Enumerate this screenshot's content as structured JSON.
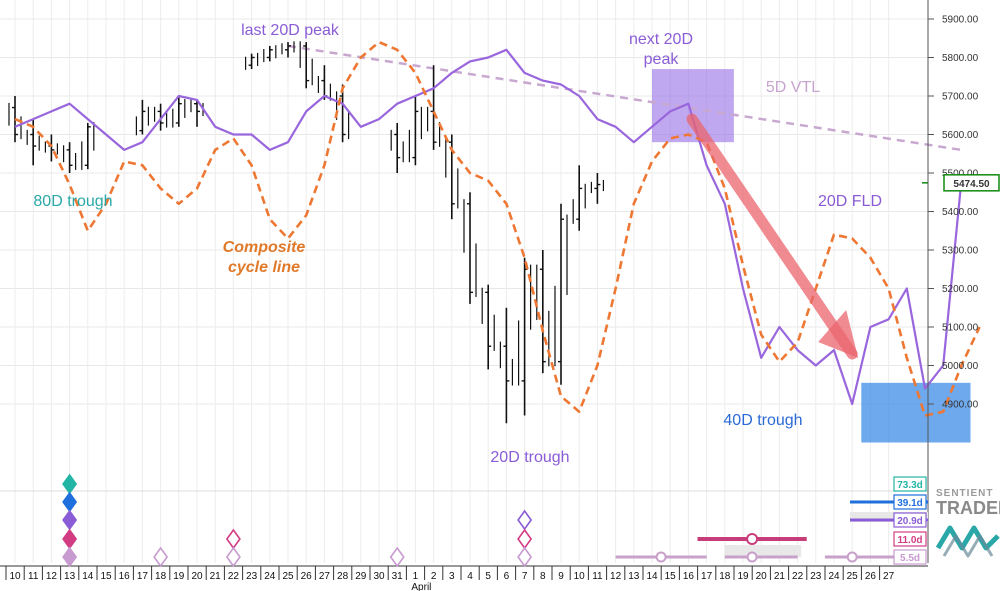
{
  "chart_data": {
    "type": "line",
    "title": "",
    "xlabel": "",
    "ylabel": "",
    "ylim": [
      4740,
      5970
    ],
    "y_ticks": [
      4900,
      5000,
      5100,
      5200,
      5300,
      5400,
      5500,
      5600,
      5700,
      5800,
      5900
    ],
    "y_tick_labels": [
      "4900.00",
      "5000.00",
      "5100.00",
      "5200.00",
      "5300.00",
      "5400.00",
      "5500.00",
      "5600.00",
      "5700.00",
      "5800.00",
      "5900.00"
    ],
    "last_price_label": "5474.50",
    "last_price": 5474.5,
    "x_tick_labels": [
      "10",
      "11",
      "12",
      "13",
      "14",
      "15",
      "16",
      "17",
      "18",
      "19",
      "20",
      "21",
      "22",
      "23",
      "24",
      "25",
      "26",
      "27",
      "28",
      "29",
      "30",
      "31",
      "1",
      "2",
      "3",
      "4",
      "5",
      "6",
      "7",
      "8",
      "9",
      "10",
      "11",
      "12",
      "13",
      "14",
      "15",
      "16",
      "17",
      "18",
      "19",
      "20",
      "21",
      "22",
      "23",
      "24",
      "25",
      "26",
      "27"
    ],
    "month_label": "April",
    "grid": true,
    "series": [
      {
        "kind": "ohlc",
        "color": "#111111",
        "days": [
          {
            "x": 0,
            "o": 5670,
            "h": 5700,
            "l": 5580,
            "c": 5600
          },
          {
            "x": 1,
            "o": 5600,
            "h": 5640,
            "l": 5520,
            "c": 5570
          },
          {
            "x": 2,
            "o": 5570,
            "h": 5600,
            "l": 5530,
            "c": 5560
          },
          {
            "x": 3,
            "o": 5560,
            "h": 5580,
            "l": 5500,
            "c": 5520
          },
          {
            "x": 4,
            "o": 5520,
            "h": 5630,
            "l": 5510,
            "c": 5620
          },
          {
            "x": 7,
            "o": 5610,
            "h": 5690,
            "l": 5600,
            "c": 5660
          },
          {
            "x": 8,
            "o": 5660,
            "h": 5680,
            "l": 5610,
            "c": 5630
          },
          {
            "x": 9,
            "o": 5630,
            "h": 5700,
            "l": 5620,
            "c": 5680
          },
          {
            "x": 10,
            "o": 5680,
            "h": 5690,
            "l": 5620,
            "c": 5660
          },
          {
            "x": 13,
            "o": 5780,
            "h": 5810,
            "l": 5770,
            "c": 5800
          },
          {
            "x": 14,
            "o": 5800,
            "h": 5830,
            "l": 5790,
            "c": 5820
          },
          {
            "x": 15,
            "o": 5820,
            "h": 5840,
            "l": 5800,
            "c": 5830
          },
          {
            "x": 16,
            "o": 5830,
            "h": 5840,
            "l": 5720,
            "c": 5740
          },
          {
            "x": 17,
            "o": 5740,
            "h": 5780,
            "l": 5690,
            "c": 5700
          },
          {
            "x": 18,
            "o": 5700,
            "h": 5730,
            "l": 5580,
            "c": 5600
          },
          {
            "x": 21,
            "o": 5600,
            "h": 5630,
            "l": 5500,
            "c": 5540
          },
          {
            "x": 22,
            "o": 5540,
            "h": 5700,
            "l": 5520,
            "c": 5660
          },
          {
            "x": 23,
            "o": 5660,
            "h": 5780,
            "l": 5560,
            "c": 5580
          },
          {
            "x": 24,
            "o": 5580,
            "h": 5600,
            "l": 5380,
            "c": 5420
          },
          {
            "x": 25,
            "o": 5420,
            "h": 5450,
            "l": 5160,
            "c": 5190
          },
          {
            "x": 26,
            "o": 5190,
            "h": 5210,
            "l": 4990,
            "c": 5050
          },
          {
            "x": 27,
            "o": 5050,
            "h": 5150,
            "l": 4850,
            "c": 4960
          },
          {
            "x": 28,
            "o": 4960,
            "h": 5280,
            "l": 4870,
            "c": 5250
          },
          {
            "x": 29,
            "o": 5250,
            "h": 5300,
            "l": 4980,
            "c": 5010
          },
          {
            "x": 30,
            "o": 5010,
            "h": 5420,
            "l": 4950,
            "c": 5380
          },
          {
            "x": 31,
            "o": 5380,
            "h": 5520,
            "l": 5350,
            "c": 5460
          },
          {
            "x": 32,
            "o": 5460,
            "h": 5500,
            "l": 5420,
            "c": 5470
          }
        ]
      },
      {
        "name": "20D FLD",
        "color": "#9966dd",
        "points": [
          [
            0,
            5620
          ],
          [
            1,
            5640
          ],
          [
            2,
            5660
          ],
          [
            3,
            5680
          ],
          [
            4,
            5640
          ],
          [
            5,
            5600
          ],
          [
            6,
            5560
          ],
          [
            7,
            5580
          ],
          [
            8,
            5640
          ],
          [
            9,
            5700
          ],
          [
            10,
            5690
          ],
          [
            11,
            5620
          ],
          [
            12,
            5600
          ],
          [
            13,
            5600
          ],
          [
            14,
            5560
          ],
          [
            15,
            5580
          ],
          [
            16,
            5660
          ],
          [
            17,
            5700
          ],
          [
            18,
            5680
          ],
          [
            19,
            5620
          ],
          [
            20,
            5640
          ],
          [
            21,
            5680
          ],
          [
            22,
            5700
          ],
          [
            23,
            5720
          ],
          [
            24,
            5760
          ],
          [
            25,
            5790
          ],
          [
            26,
            5800
          ],
          [
            27,
            5820
          ],
          [
            28,
            5760
          ],
          [
            29,
            5740
          ],
          [
            30,
            5730
          ],
          [
            31,
            5700
          ],
          [
            32,
            5640
          ],
          [
            33,
            5620
          ],
          [
            34,
            5580
          ],
          [
            35,
            5620
          ],
          [
            36,
            5660
          ],
          [
            37,
            5680
          ],
          [
            38,
            5520
          ],
          [
            39,
            5420
          ],
          [
            40,
            5200
          ],
          [
            41,
            5020
          ],
          [
            42,
            5100
          ],
          [
            43,
            5040
          ],
          [
            44,
            5000
          ],
          [
            45,
            5040
          ],
          [
            46,
            4900
          ],
          [
            47,
            5100
          ],
          [
            48,
            5120
          ],
          [
            49,
            5200
          ],
          [
            50,
            4940
          ],
          [
            51,
            5000
          ],
          [
            52,
            5480
          ]
        ]
      },
      {
        "name": "Composite cycle line",
        "color": "#ee7733",
        "points": [
          [
            0,
            5640
          ],
          [
            1,
            5620
          ],
          [
            2,
            5570
          ],
          [
            3,
            5470
          ],
          [
            4,
            5350
          ],
          [
            5,
            5420
          ],
          [
            6,
            5530
          ],
          [
            7,
            5520
          ],
          [
            8,
            5460
          ],
          [
            9,
            5420
          ],
          [
            10,
            5460
          ],
          [
            11,
            5560
          ],
          [
            12,
            5590
          ],
          [
            13,
            5520
          ],
          [
            14,
            5380
          ],
          [
            15,
            5330
          ],
          [
            16,
            5390
          ],
          [
            17,
            5520
          ],
          [
            18,
            5720
          ],
          [
            19,
            5800
          ],
          [
            20,
            5840
          ],
          [
            21,
            5820
          ],
          [
            22,
            5760
          ],
          [
            23,
            5660
          ],
          [
            24,
            5560
          ],
          [
            25,
            5500
          ],
          [
            26,
            5480
          ],
          [
            27,
            5420
          ],
          [
            28,
            5280
          ],
          [
            29,
            5090
          ],
          [
            30,
            4920
          ],
          [
            31,
            4880
          ],
          [
            32,
            5000
          ],
          [
            33,
            5200
          ],
          [
            34,
            5420
          ],
          [
            35,
            5530
          ],
          [
            36,
            5590
          ],
          [
            37,
            5600
          ],
          [
            38,
            5580
          ],
          [
            39,
            5460
          ],
          [
            40,
            5260
          ],
          [
            41,
            5080
          ],
          [
            42,
            5010
          ],
          [
            43,
            5060
          ],
          [
            44,
            5200
          ],
          [
            45,
            5340
          ],
          [
            46,
            5330
          ],
          [
            47,
            5280
          ],
          [
            48,
            5200
          ],
          [
            49,
            5020
          ],
          [
            50,
            4870
          ],
          [
            51,
            4880
          ],
          [
            52,
            5000
          ],
          [
            53,
            5100
          ]
        ]
      }
    ],
    "x_index_range": [
      0,
      53
    ],
    "vtl_line": {
      "label": "5D VTL",
      "from": [
        15,
        5830
      ],
      "to": [
        52,
        5560
      ]
    },
    "zones": [
      {
        "label": "next 20D peak",
        "x": [
          35,
          39.5
        ],
        "y": [
          5580,
          5770
        ]
      },
      {
        "label": "40D trough",
        "x": [
          46.5,
          52.5
        ],
        "y": [
          4800,
          4955
        ]
      }
    ],
    "annotations": [
      "last 20D peak",
      "next 20D\npeak",
      "5D VTL",
      "80D trough",
      "Composite\ncycle line",
      "20D FLD",
      "20D trough",
      "40D trough"
    ],
    "cycle_labels": [
      "73.3d",
      "39.1d",
      "20.9d",
      "11.0d",
      "5.5d"
    ],
    "logo_text": "SENTIENT TRADER"
  }
}
